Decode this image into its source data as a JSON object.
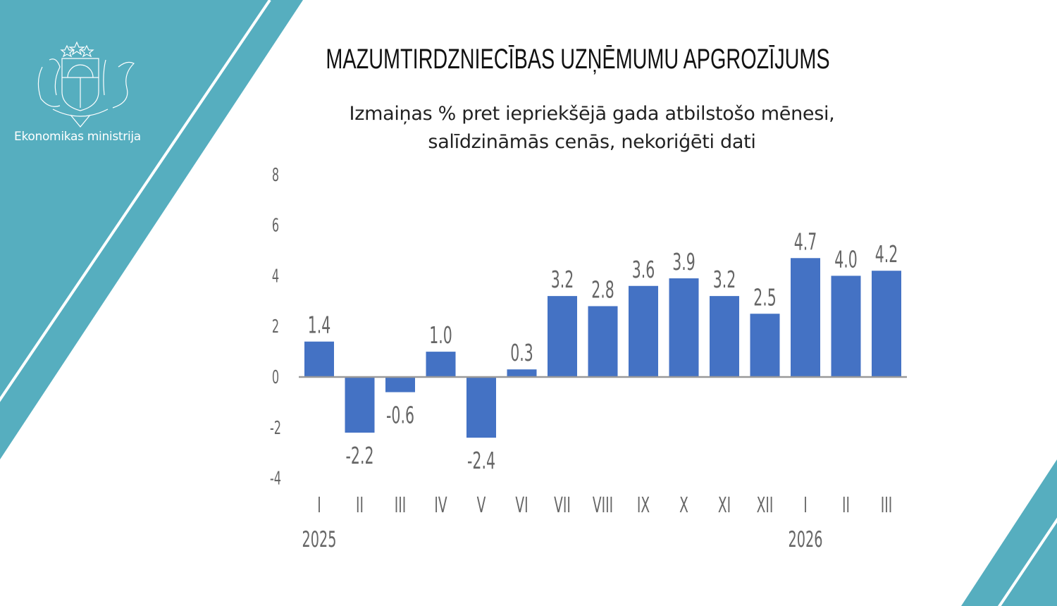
{
  "branding": {
    "ministry": "Ekonomikas ministrija",
    "accent_color": "#56aebf",
    "logo_icon": "latvia-coat-of-arms"
  },
  "header": {
    "title": "MAZUMTIRDZNIECĪBAS UZŅĒMUMU APGROZĪJUMS",
    "subtitle_line1": "Izmaiņas % pret iepriekšējā gada atbilstošo mēnesi,",
    "subtitle_line2": "salīdzināmās cenās, nekoriģēti dati"
  },
  "chart_data": {
    "type": "bar",
    "title": "MAZUMTIRDZNIECĪBAS UZŅĒMUMU APGROZĪJUMS",
    "subtitle": "Izmaiņas % pret iepriekšējā gada atbilstošo mēnesi, salīdzināmās cenās, nekoriģēti dati",
    "categories": [
      "I",
      "II",
      "III",
      "IV",
      "V",
      "VI",
      "VII",
      "VIII",
      "IX",
      "X",
      "XI",
      "XII",
      "I",
      "II",
      "III"
    ],
    "year_labels": [
      {
        "label": "2025",
        "index": 0
      },
      {
        "label": "2026",
        "index": 12
      }
    ],
    "values": [
      1.4,
      -2.2,
      -0.6,
      1.0,
      -2.4,
      0.3,
      3.2,
      2.8,
      3.6,
      3.9,
      3.2,
      2.5,
      4.7,
      4.0,
      4.2
    ],
    "data_labels": [
      "1.4",
      "-2.2",
      "-0.6",
      "1.0",
      "-2.4",
      "0.3",
      "3.2",
      "2.8",
      "3.6",
      "3.9",
      "3.2",
      "2.5",
      "4.7",
      "4.0",
      "4.2"
    ],
    "ylim": [
      -4,
      8
    ],
    "yticks": [
      -4,
      -2,
      0,
      2,
      4,
      6,
      8
    ],
    "ytick_labels": [
      "-4",
      "-2",
      "0",
      "2",
      "4",
      "6",
      "8"
    ],
    "grid": false,
    "bar_color": "#4472c4",
    "xlabel": "",
    "ylabel": ""
  }
}
